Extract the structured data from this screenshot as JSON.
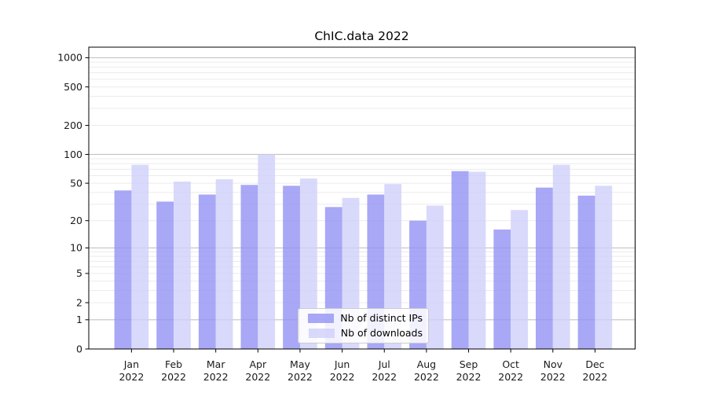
{
  "chart_data": {
    "type": "bar",
    "title": "ChIC.data 2022",
    "xlabel": "",
    "ylabel": "",
    "yscale": "log1p",
    "grid": true,
    "legend_position": "lower center",
    "categories": [
      "Jan 2022",
      "Feb 2022",
      "Mar 2022",
      "Apr 2022",
      "May 2022",
      "Jun 2022",
      "Jul 2022",
      "Aug 2022",
      "Sep 2022",
      "Oct 2022",
      "Nov 2022",
      "Dec 2022"
    ],
    "xtick_months": [
      "Jan",
      "Feb",
      "Mar",
      "Apr",
      "May",
      "Jun",
      "Jul",
      "Aug",
      "Sep",
      "Oct",
      "Nov",
      "Dec"
    ],
    "xtick_year": "2022",
    "yticks": [
      0,
      1,
      2,
      5,
      10,
      20,
      50,
      100,
      200,
      500,
      1000
    ],
    "ytick_labels": [
      "0",
      "1",
      "2",
      "5",
      "10",
      "20",
      "50",
      "100",
      "200",
      "500",
      "1000"
    ],
    "ylim": [
      0,
      1390
    ],
    "series": [
      {
        "name": "Nb of distinct IPs",
        "color": "#9292f4",
        "alpha": 0.8,
        "values": [
          42,
          32,
          38,
          48,
          47,
          28,
          38,
          20,
          67,
          16,
          45,
          37
        ]
      },
      {
        "name": "Nb of downloads",
        "color": "#cfcffa",
        "alpha": 0.8,
        "values": [
          78,
          52,
          55,
          100,
          56,
          35,
          49,
          29,
          66,
          26,
          78,
          47
        ]
      }
    ],
    "colors": {
      "major_grid": "#c3c3c3",
      "minor_grid": "#ebebeb",
      "spine": "#000000",
      "tick_text": "#1a1a1a",
      "title_text": "#000000"
    }
  }
}
